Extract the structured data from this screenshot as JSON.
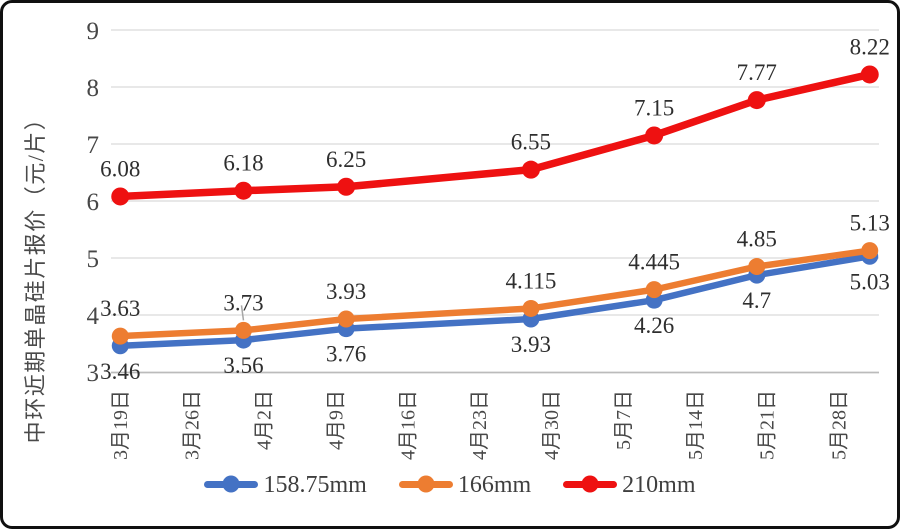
{
  "chart_data": {
    "type": "line",
    "title": "",
    "ylabel": "中环近期单晶硅片报价（元/片）",
    "ylim": [
      3,
      9
    ],
    "y_ticks": [
      3,
      4,
      5,
      6,
      7,
      8,
      9
    ],
    "x_tick_labels": [
      "3月19日",
      "3月26日",
      "4月2日",
      "4月9日",
      "4月16日",
      "4月23日",
      "4月30日",
      "5月7日",
      "5月14日",
      "5月21日",
      "5月28日"
    ],
    "x_tick_days": [
      0,
      7,
      14,
      21,
      28,
      35,
      42,
      49,
      56,
      63,
      70
    ],
    "x_range_days": [
      -1,
      74
    ],
    "grid": "horizontal",
    "legend_position": "bottom",
    "series": [
      {
        "name": "158.75mm",
        "color": "#4472C4",
        "x_days": [
          0,
          12,
          22,
          40,
          52,
          62,
          73
        ],
        "values": [
          3.46,
          3.56,
          3.76,
          3.93,
          4.26,
          4.7,
          5.03
        ],
        "labels": [
          "3.46",
          "3.56",
          "3.76",
          "3.93",
          "4.26",
          "4.7",
          "5.03"
        ],
        "label_position": "below",
        "label_leader_indices": []
      },
      {
        "name": "166mm",
        "color": "#ED7D31",
        "x_days": [
          0,
          12,
          22,
          40,
          52,
          62,
          73
        ],
        "values": [
          3.63,
          3.73,
          3.93,
          4.115,
          4.445,
          4.85,
          5.13
        ],
        "labels": [
          "3.63",
          "3.73",
          "3.93",
          "4.115",
          "4.445",
          "4.85",
          "5.13"
        ],
        "label_position": "above",
        "label_leader_indices": [
          1
        ]
      },
      {
        "name": "210mm",
        "color": "#EE1111",
        "x_days": [
          0,
          12,
          22,
          40,
          52,
          62,
          73
        ],
        "values": [
          6.08,
          6.18,
          6.25,
          6.55,
          7.15,
          7.77,
          8.22
        ],
        "labels": [
          "6.08",
          "6.18",
          "6.25",
          "6.55",
          "7.15",
          "7.77",
          "8.22"
        ],
        "label_position": "above",
        "label_leader_indices": []
      }
    ],
    "colors": {
      "gridline": "#DBDBDB",
      "axis_line": "#BBBBBB",
      "tick_text": "#474747",
      "data_label_text": "#2E2E2E",
      "axis_title_text": "#4a4a4a",
      "leader_line": "#A6A6A6",
      "frame_border": "#101010"
    }
  }
}
